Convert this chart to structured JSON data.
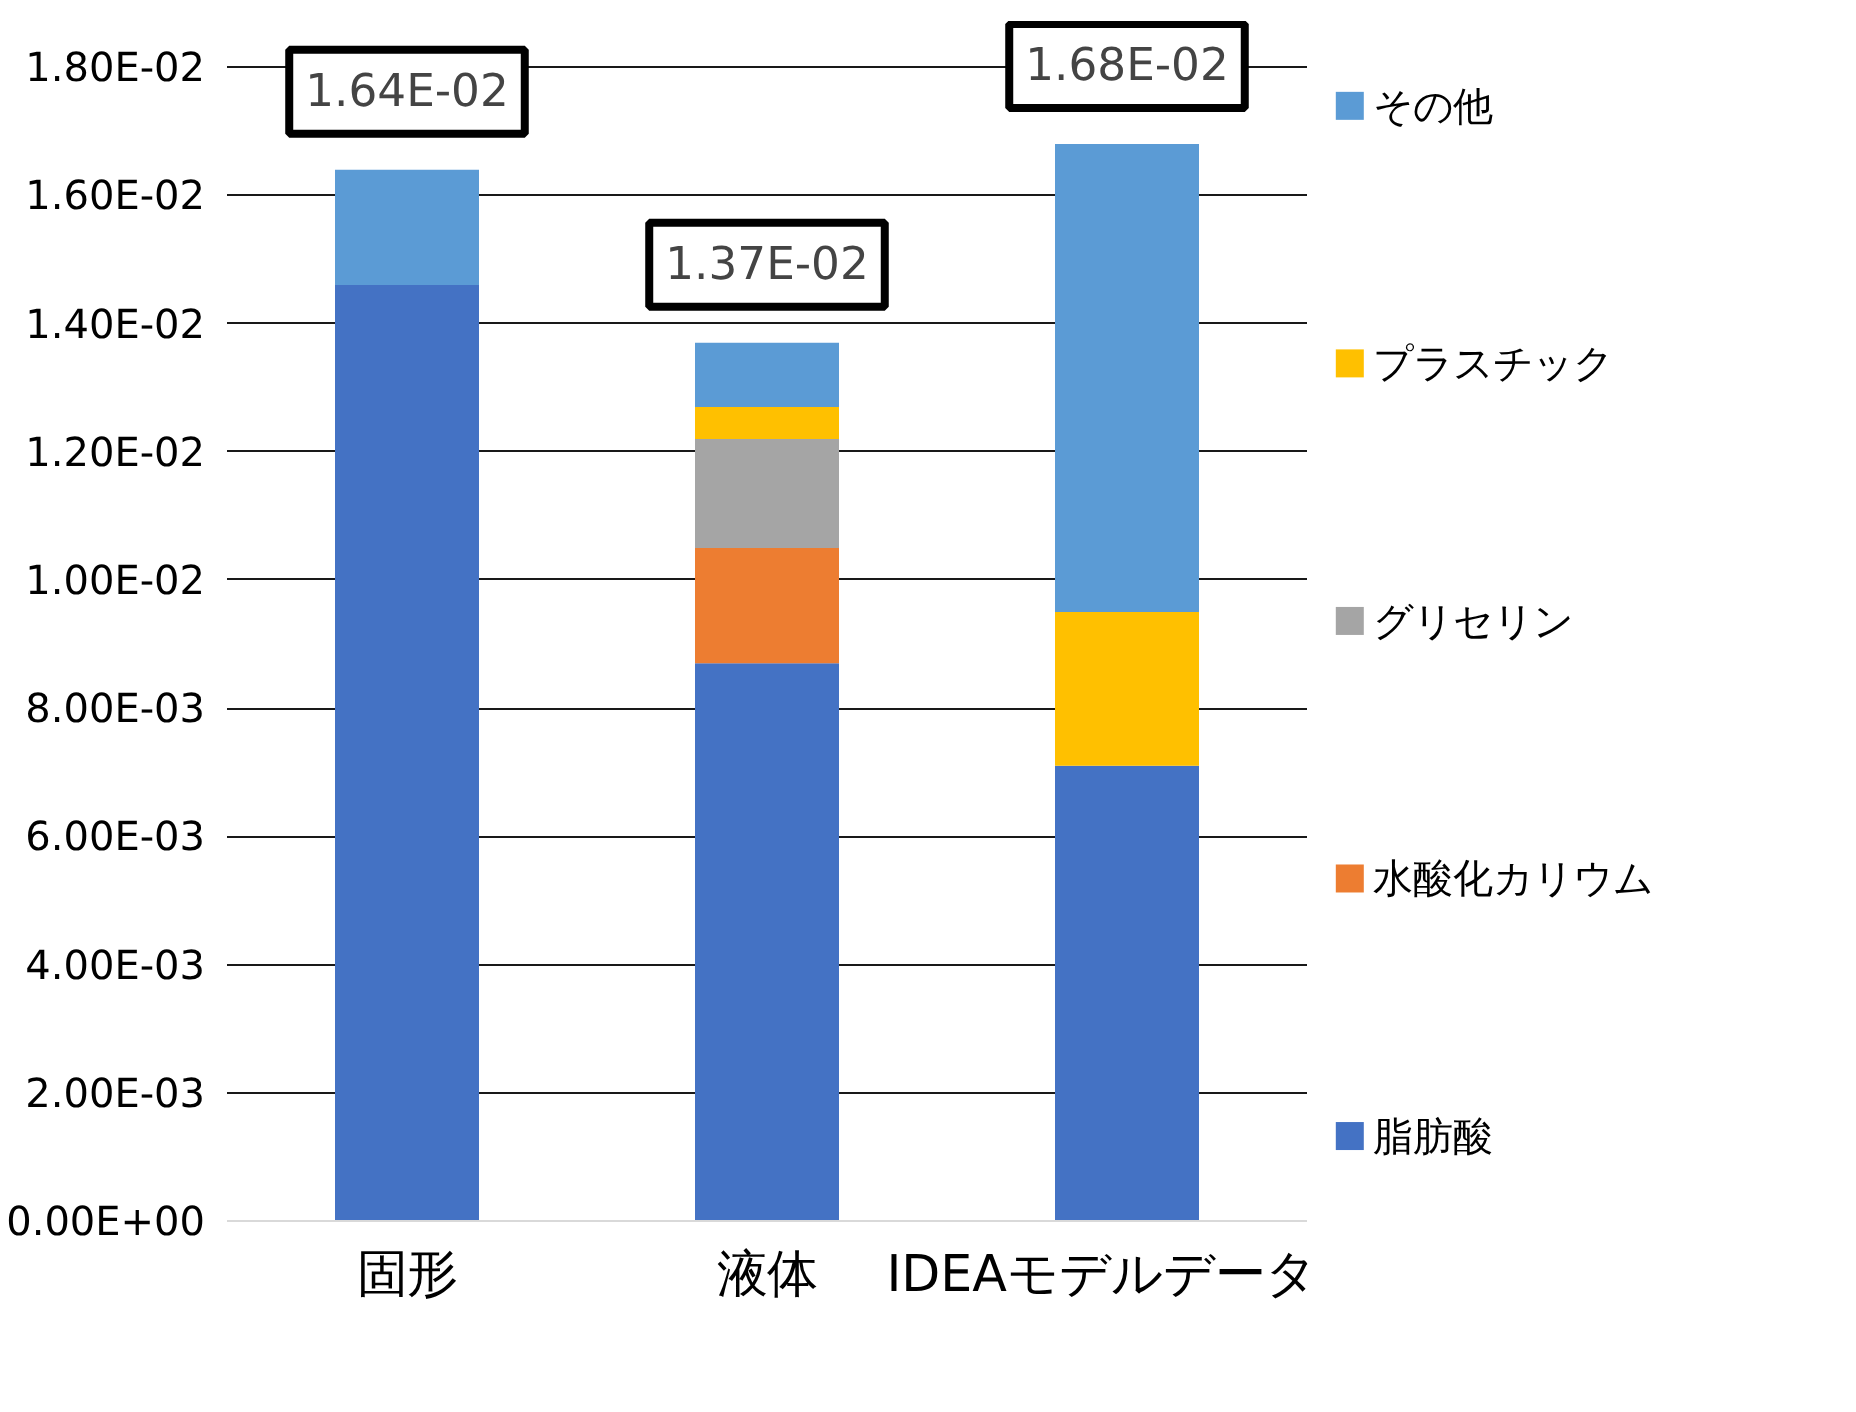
{
  "chart_data": {
    "type": "bar",
    "stacked": true,
    "categories": [
      "固形",
      "液体",
      "IDEAモデルデータ"
    ],
    "series": [
      {
        "name": "脂肪酸",
        "color": "#4472c4",
        "values": [
          0.0146,
          0.0087,
          0.0071
        ]
      },
      {
        "name": "水酸化カリウム",
        "color": "#ed7d31",
        "values": [
          null,
          0.0018,
          null
        ]
      },
      {
        "name": "グリセリン",
        "color": "#a5a5a5",
        "values": [
          null,
          0.0017,
          null
        ]
      },
      {
        "name": "プラスチック",
        "color": "#ffc000",
        "values": [
          null,
          0.0005,
          0.0024
        ]
      },
      {
        "name": "その他",
        "color": "#5b9bd5",
        "values": [
          0.0018,
          0.001,
          0.0073
        ]
      }
    ],
    "totals": [
      "1.64E-02",
      "1.37E-02",
      "1.68E-02"
    ],
    "ylim": [
      0,
      0.018
    ],
    "yticks": [
      {
        "value": 0,
        "label": "0.00E+00"
      },
      {
        "value": 0.002,
        "label": "2.00E-03"
      },
      {
        "value": 0.004,
        "label": "4.00E-03"
      },
      {
        "value": 0.006,
        "label": "6.00E-03"
      },
      {
        "value": 0.008,
        "label": "8.00E-03"
      },
      {
        "value": 0.01,
        "label": "1.00E-02"
      },
      {
        "value": 0.012,
        "label": "1.20E-02"
      },
      {
        "value": 0.014,
        "label": "1.40E-02"
      },
      {
        "value": 0.016,
        "label": "1.60E-02"
      },
      {
        "value": 0.018,
        "label": "1.80E-02"
      }
    ],
    "grid": "y",
    "legend": "right"
  }
}
